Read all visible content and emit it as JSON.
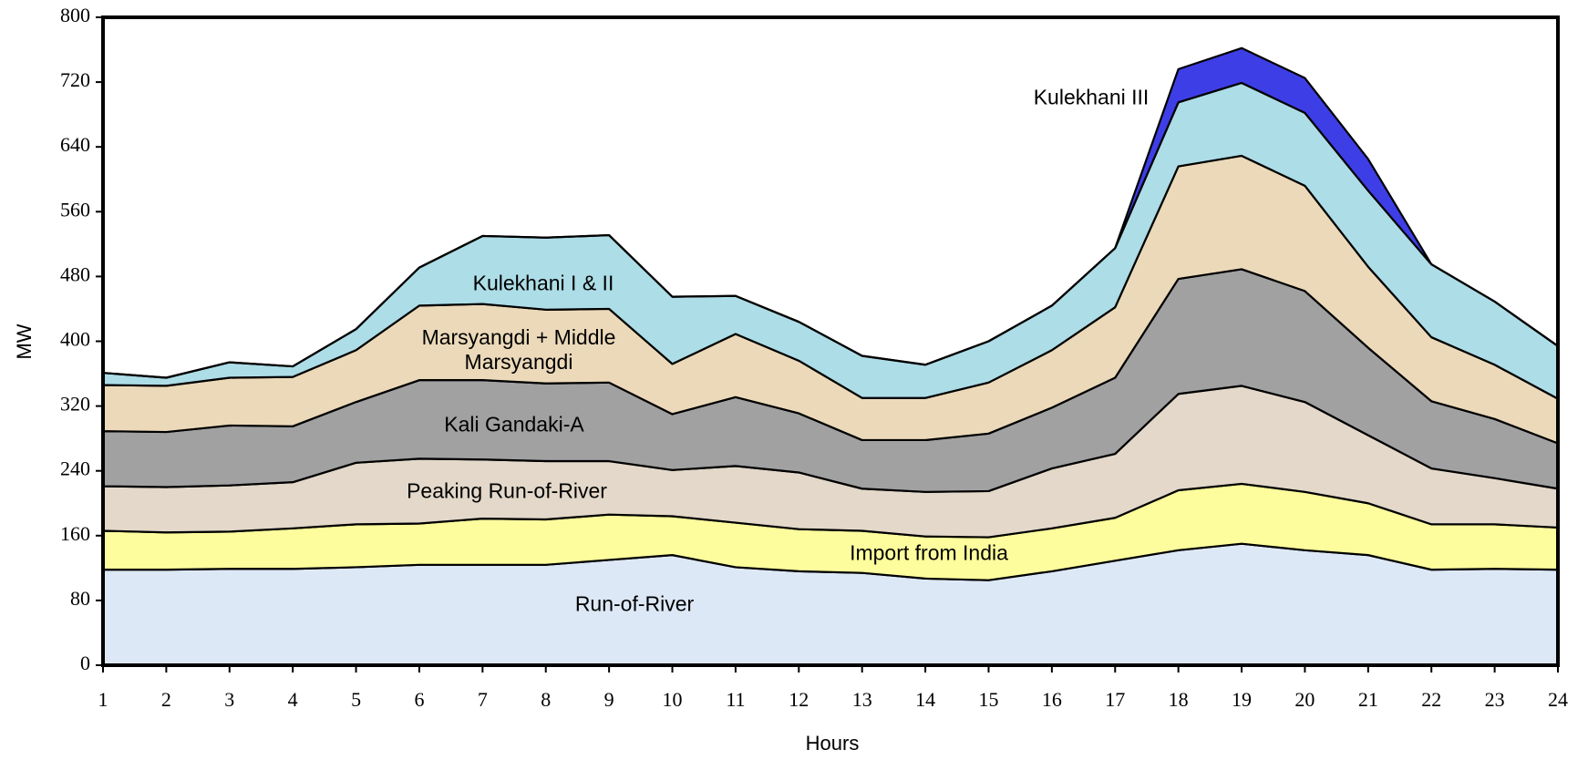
{
  "chart_data": {
    "type": "stacked_area",
    "x_label": "Hours",
    "y_label": "MW",
    "x": [
      1,
      2,
      3,
      4,
      5,
      6,
      7,
      8,
      9,
      10,
      11,
      12,
      13,
      14,
      15,
      16,
      17,
      18,
      19,
      20,
      21,
      22,
      23,
      24
    ],
    "xlim": [
      1,
      24
    ],
    "xticks": [
      1,
      2,
      3,
      4,
      5,
      6,
      7,
      8,
      9,
      10,
      11,
      12,
      13,
      14,
      15,
      16,
      17,
      18,
      19,
      20,
      21,
      22,
      23,
      24
    ],
    "ylim": [
      0,
      800
    ],
    "yticks": [
      0,
      80,
      160,
      240,
      320,
      400,
      480,
      560,
      640,
      720,
      800
    ],
    "series": [
      {
        "name": "Run-of-River",
        "color": "#dbe7f5",
        "values": [
          118,
          118,
          119,
          119,
          121,
          124,
          124,
          124,
          130,
          136,
          121,
          116,
          114,
          107,
          105,
          116,
          129,
          142,
          150,
          142,
          136,
          118,
          119,
          118
        ]
      },
      {
        "name": "Import from India",
        "color": "#fdfd98",
        "values": [
          48,
          46,
          46,
          50,
          53,
          51,
          57,
          56,
          56,
          48,
          55,
          52,
          52,
          52,
          53,
          53,
          53,
          74,
          74,
          72,
          64,
          56,
          55,
          52
        ]
      },
      {
        "name": "Peaking Run-of-River",
        "color": "#e2d6c6",
        "values": [
          55,
          56,
          57,
          57,
          76,
          80,
          73,
          72,
          66,
          57,
          70,
          70,
          52,
          55,
          57,
          74,
          79,
          119,
          121,
          111,
          84,
          69,
          57,
          48
        ]
      },
      {
        "name": "Kali Gandaki-A",
        "color": "#9c9c9c",
        "values": [
          68,
          68,
          74,
          69,
          75,
          97,
          98,
          96,
          97,
          69,
          85,
          73,
          60,
          64,
          71,
          75,
          94,
          142,
          144,
          137,
          108,
          83,
          73,
          56
        ]
      },
      {
        "name": "Marsyangdi + Middle Marsyangdi",
        "color": "#ead7b5",
        "values": [
          57,
          57,
          59,
          61,
          64,
          92,
          94,
          91,
          91,
          62,
          78,
          65,
          52,
          52,
          63,
          71,
          87,
          139,
          140,
          130,
          100,
          79,
          67,
          55
        ]
      },
      {
        "name": "Kulekhani I & II",
        "color": "#a9dbe6",
        "values": [
          15,
          10,
          19,
          13,
          26,
          47,
          84,
          89,
          91,
          83,
          47,
          48,
          52,
          41,
          51,
          55,
          73,
          79,
          90,
          90,
          94,
          90,
          78,
          65
        ]
      },
      {
        "name": "Kulekhani III",
        "color": "#3434e6",
        "values": [
          0,
          0,
          0,
          0,
          0,
          0,
          0,
          0,
          0,
          0,
          0,
          0,
          0,
          0,
          0,
          0,
          0,
          41,
          43,
          43,
          39,
          0,
          0,
          0
        ]
      }
    ]
  }
}
